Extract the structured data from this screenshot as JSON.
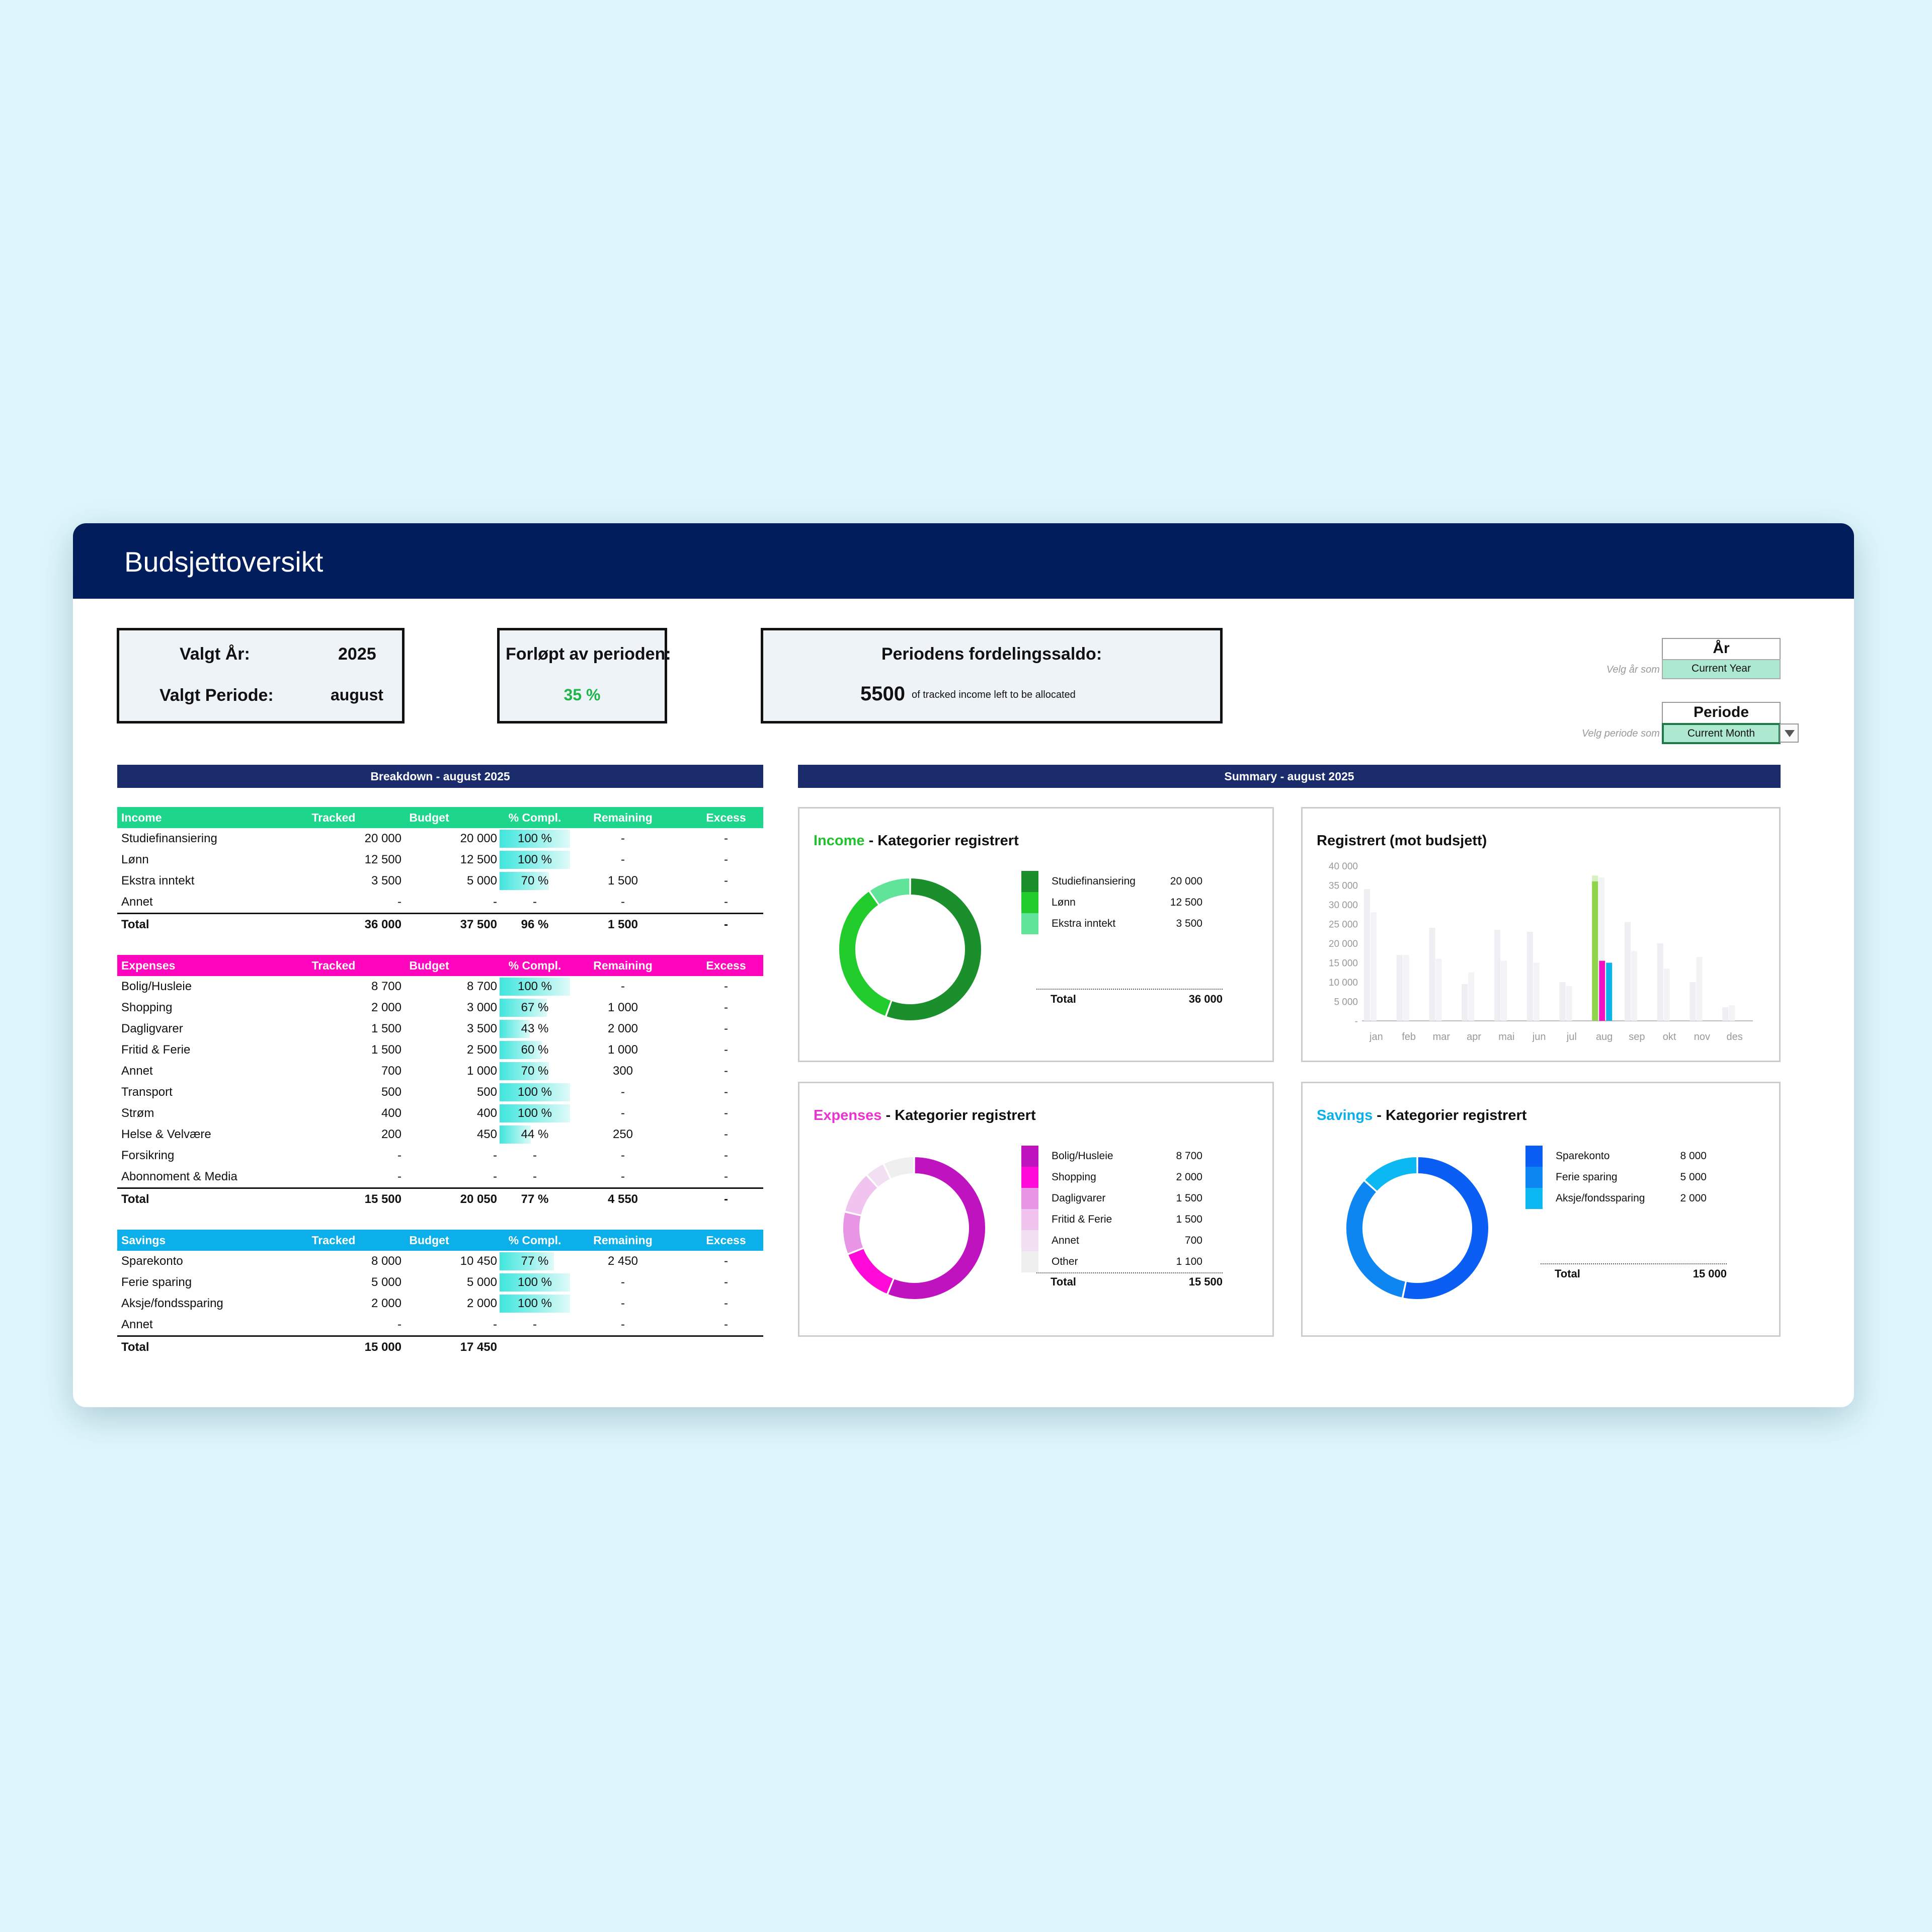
{
  "header": {
    "title": "Budsjettoversikt"
  },
  "info": {
    "year_label": "Valgt År:",
    "year_value": "2025",
    "period_label": "Valgt Periode:",
    "period_value": "august",
    "progress_label": "Forløpt av perioden:",
    "progress_value": "35 %",
    "balance_label": "Periodens fordelingssaldo:",
    "balance_value": "5500",
    "balance_note": "of tracked income left to be allocated"
  },
  "selectors": {
    "year_hint": "Velg år som skal vises ->",
    "year_title": "År",
    "year_value": "Current Year",
    "period_hint": "Velg periode som skal vises ->",
    "period_title": "Periode",
    "period_value": "Current Month",
    "dropdown_icon": "triangle-down"
  },
  "breakdown": {
    "title": "Breakdown - august 2025",
    "columns": [
      "Tracked",
      "Budget",
      "% Compl.",
      "Remaining",
      "Excess"
    ],
    "income": {
      "name": "Income",
      "color": "#1dd68c",
      "rows": [
        {
          "label": "Studiefinansiering",
          "tracked": "20 000",
          "budget": "20 000",
          "pct": "100 %",
          "remaining": "-",
          "excess": "-",
          "fill": 1.0
        },
        {
          "label": "Lønn",
          "tracked": "12 500",
          "budget": "12 500",
          "pct": "100 %",
          "remaining": "-",
          "excess": "-",
          "fill": 1.0
        },
        {
          "label": "Ekstra inntekt",
          "tracked": "3 500",
          "budget": "5 000",
          "pct": "70 %",
          "remaining": "1 500",
          "excess": "-",
          "fill": 0.7
        },
        {
          "label": "Annet",
          "tracked": "-",
          "budget": "-",
          "pct": "-",
          "remaining": "-",
          "excess": "-",
          "fill": 0
        }
      ],
      "total": {
        "label": "Total",
        "tracked": "36 000",
        "budget": "37 500",
        "pct": "96 %",
        "remaining": "1 500",
        "excess": "-"
      }
    },
    "expenses": {
      "name": "Expenses",
      "color": "#ff05be",
      "rows": [
        {
          "label": "Bolig/Husleie",
          "tracked": "8 700",
          "budget": "8 700",
          "pct": "100 %",
          "remaining": "-",
          "excess": "-",
          "fill": 1.0
        },
        {
          "label": "Shopping",
          "tracked": "2 000",
          "budget": "3 000",
          "pct": "67 %",
          "remaining": "1 000",
          "excess": "-",
          "fill": 0.67
        },
        {
          "label": "Dagligvarer",
          "tracked": "1 500",
          "budget": "3 500",
          "pct": "43 %",
          "remaining": "2 000",
          "excess": "-",
          "fill": 0.43
        },
        {
          "label": "Fritid & Ferie",
          "tracked": "1 500",
          "budget": "2 500",
          "pct": "60 %",
          "remaining": "1 000",
          "excess": "-",
          "fill": 0.6
        },
        {
          "label": "Annet",
          "tracked": "700",
          "budget": "1 000",
          "pct": "70 %",
          "remaining": "300",
          "excess": "-",
          "fill": 0.7
        },
        {
          "label": "Transport",
          "tracked": "500",
          "budget": "500",
          "pct": "100 %",
          "remaining": "-",
          "excess": "-",
          "fill": 1.0
        },
        {
          "label": "Strøm",
          "tracked": "400",
          "budget": "400",
          "pct": "100 %",
          "remaining": "-",
          "excess": "-",
          "fill": 1.0
        },
        {
          "label": "Helse & Velvære",
          "tracked": "200",
          "budget": "450",
          "pct": "44 %",
          "remaining": "250",
          "excess": "-",
          "fill": 0.44
        },
        {
          "label": "Forsikring",
          "tracked": "-",
          "budget": "-",
          "pct": "-",
          "remaining": "-",
          "excess": "-",
          "fill": 0
        },
        {
          "label": "Abonnoment & Media",
          "tracked": "-",
          "budget": "-",
          "pct": "-",
          "remaining": "-",
          "excess": "-",
          "fill": 0
        }
      ],
      "total": {
        "label": "Total",
        "tracked": "15 500",
        "budget": "20 050",
        "pct": "77 %",
        "remaining": "4 550",
        "excess": "-"
      }
    },
    "savings": {
      "name": "Savings",
      "color": "#0bafea",
      "rows": [
        {
          "label": "Sparekonto",
          "tracked": "8 000",
          "budget": "10 450",
          "pct": "77 %",
          "remaining": "2 450",
          "excess": "-",
          "fill": 0.77
        },
        {
          "label": "Ferie sparing",
          "tracked": "5 000",
          "budget": "5 000",
          "pct": "100 %",
          "remaining": "-",
          "excess": "-",
          "fill": 1.0
        },
        {
          "label": "Aksje/fondssparing",
          "tracked": "2 000",
          "budget": "2 000",
          "pct": "100 %",
          "remaining": "-",
          "excess": "-",
          "fill": 1.0
        },
        {
          "label": "Annet",
          "tracked": "-",
          "budget": "-",
          "pct": "-",
          "remaining": "-",
          "excess": "-",
          "fill": 0
        }
      ],
      "total": {
        "label": "Total",
        "tracked": "15 000",
        "budget": "17 450",
        "pct": "",
        "remaining": "",
        "excess": ""
      }
    }
  },
  "summary": {
    "title": "Summary - august 2025",
    "income_title": "Income",
    "expenses_title": "Expenses",
    "savings_title": "Savings",
    "title_suffix": " - Kategorier registrert",
    "income_color": "#22c22e",
    "expenses_color": "#ea33d2",
    "savings_color": "#0bafea",
    "income_legend": {
      "items": [
        {
          "label": "Studiefinansiering",
          "value": "20 000",
          "color": "#1a8f2c"
        },
        {
          "label": "Lønn",
          "value": "12 500",
          "color": "#21cc2c"
        },
        {
          "label": "Ekstra inntekt",
          "value": "3 500",
          "color": "#5fe49a"
        }
      ],
      "total_label": "Total",
      "total_value": "36 000"
    },
    "expenses_legend": {
      "items": [
        {
          "label": "Bolig/Husleie",
          "value": "8 700",
          "color": "#c013c0"
        },
        {
          "label": "Shopping",
          "value": "2 000",
          "color": "#ff0ad9"
        },
        {
          "label": "Dagligvarer",
          "value": "1 500",
          "color": "#e895e5"
        },
        {
          "label": "Fritid & Ferie",
          "value": "1 500",
          "color": "#f0c4ee"
        },
        {
          "label": "Annet",
          "value": "700",
          "color": "#f3dff2"
        },
        {
          "label": "Other",
          "value": "1 100",
          "color": "#efefef"
        }
      ],
      "total_label": "Total",
      "total_value": "15 500"
    },
    "savings_legend": {
      "items": [
        {
          "label": "Sparekonto",
          "value": "8 000",
          "color": "#0b5ef4"
        },
        {
          "label": "Ferie sparing",
          "value": "5 000",
          "color": "#0e86f2"
        },
        {
          "label": "Aksje/fondssparing",
          "value": "2 000",
          "color": "#0cb8f2"
        }
      ],
      "total_label": "Total",
      "total_value": "15 000"
    },
    "bar_title": "Registrert (mot budsjett)"
  },
  "chart_data": [
    {
      "type": "pie",
      "title": "Income - Kategorier registrert",
      "labels": [
        "Studiefinansiering",
        "Lønn",
        "Ekstra inntekt"
      ],
      "values": [
        20000,
        12500,
        3500
      ],
      "colors": [
        "#1a8f2c",
        "#21cc2c",
        "#5fe49a"
      ]
    },
    {
      "type": "pie",
      "title": "Expenses - Kategorier registrert",
      "labels": [
        "Bolig/Husleie",
        "Shopping",
        "Dagligvarer",
        "Fritid & Ferie",
        "Annet",
        "Other"
      ],
      "values": [
        8700,
        2000,
        1500,
        1500,
        700,
        1100
      ],
      "colors": [
        "#c013c0",
        "#ff0ad9",
        "#e895e5",
        "#f0c4ee",
        "#f3dff2",
        "#efefef"
      ]
    },
    {
      "type": "pie",
      "title": "Savings - Kategorier registrert",
      "labels": [
        "Sparekonto",
        "Ferie sparing",
        "Aksje/fondssparing"
      ],
      "values": [
        8000,
        5000,
        2000
      ],
      "colors": [
        "#0b5ef4",
        "#0e86f2",
        "#0cb8f2"
      ]
    },
    {
      "type": "bar",
      "title": "Registrert (mot budsjett)",
      "categories": [
        "jan",
        "feb",
        "mar",
        "apr",
        "mai",
        "jun",
        "jul",
        "aug",
        "sep",
        "okt",
        "nov",
        "des"
      ],
      "ylim": [
        0,
        40000
      ],
      "yticks": [
        "40 000",
        "35 000",
        "30 000",
        "25 000",
        "20 000",
        "15 000",
        "10 000",
        "5 000",
        "-"
      ],
      "series": [
        {
          "values": [
            34000,
            17000,
            24000,
            9500,
            23500,
            23000,
            10000,
            36000,
            25500,
            20000,
            10000,
            3500
          ],
          "color": "#eeeef3"
        },
        {
          "values": [
            28000,
            17000,
            16000,
            12500,
            15500,
            15000,
            9000,
            37000,
            18000,
            13500,
            16500,
            4000
          ],
          "color": "#f3f3f6"
        },
        {
          "values": [
            0,
            0,
            0,
            0,
            0,
            0,
            0,
            15500,
            0,
            0,
            0,
            0
          ],
          "color": "#f212c4"
        },
        {
          "values": [
            0,
            0,
            0,
            0,
            0,
            0,
            0,
            15000,
            0,
            0,
            0,
            0
          ],
          "color": "#0db4ec"
        }
      ],
      "highlight": {
        "values": [
          0,
          0,
          0,
          0,
          0,
          0,
          0,
          36000,
          0,
          0,
          0,
          0
        ],
        "color": "#8fd44a",
        "overlay_value": 37500,
        "overlay_color": "#d6f0c2"
      }
    }
  ]
}
